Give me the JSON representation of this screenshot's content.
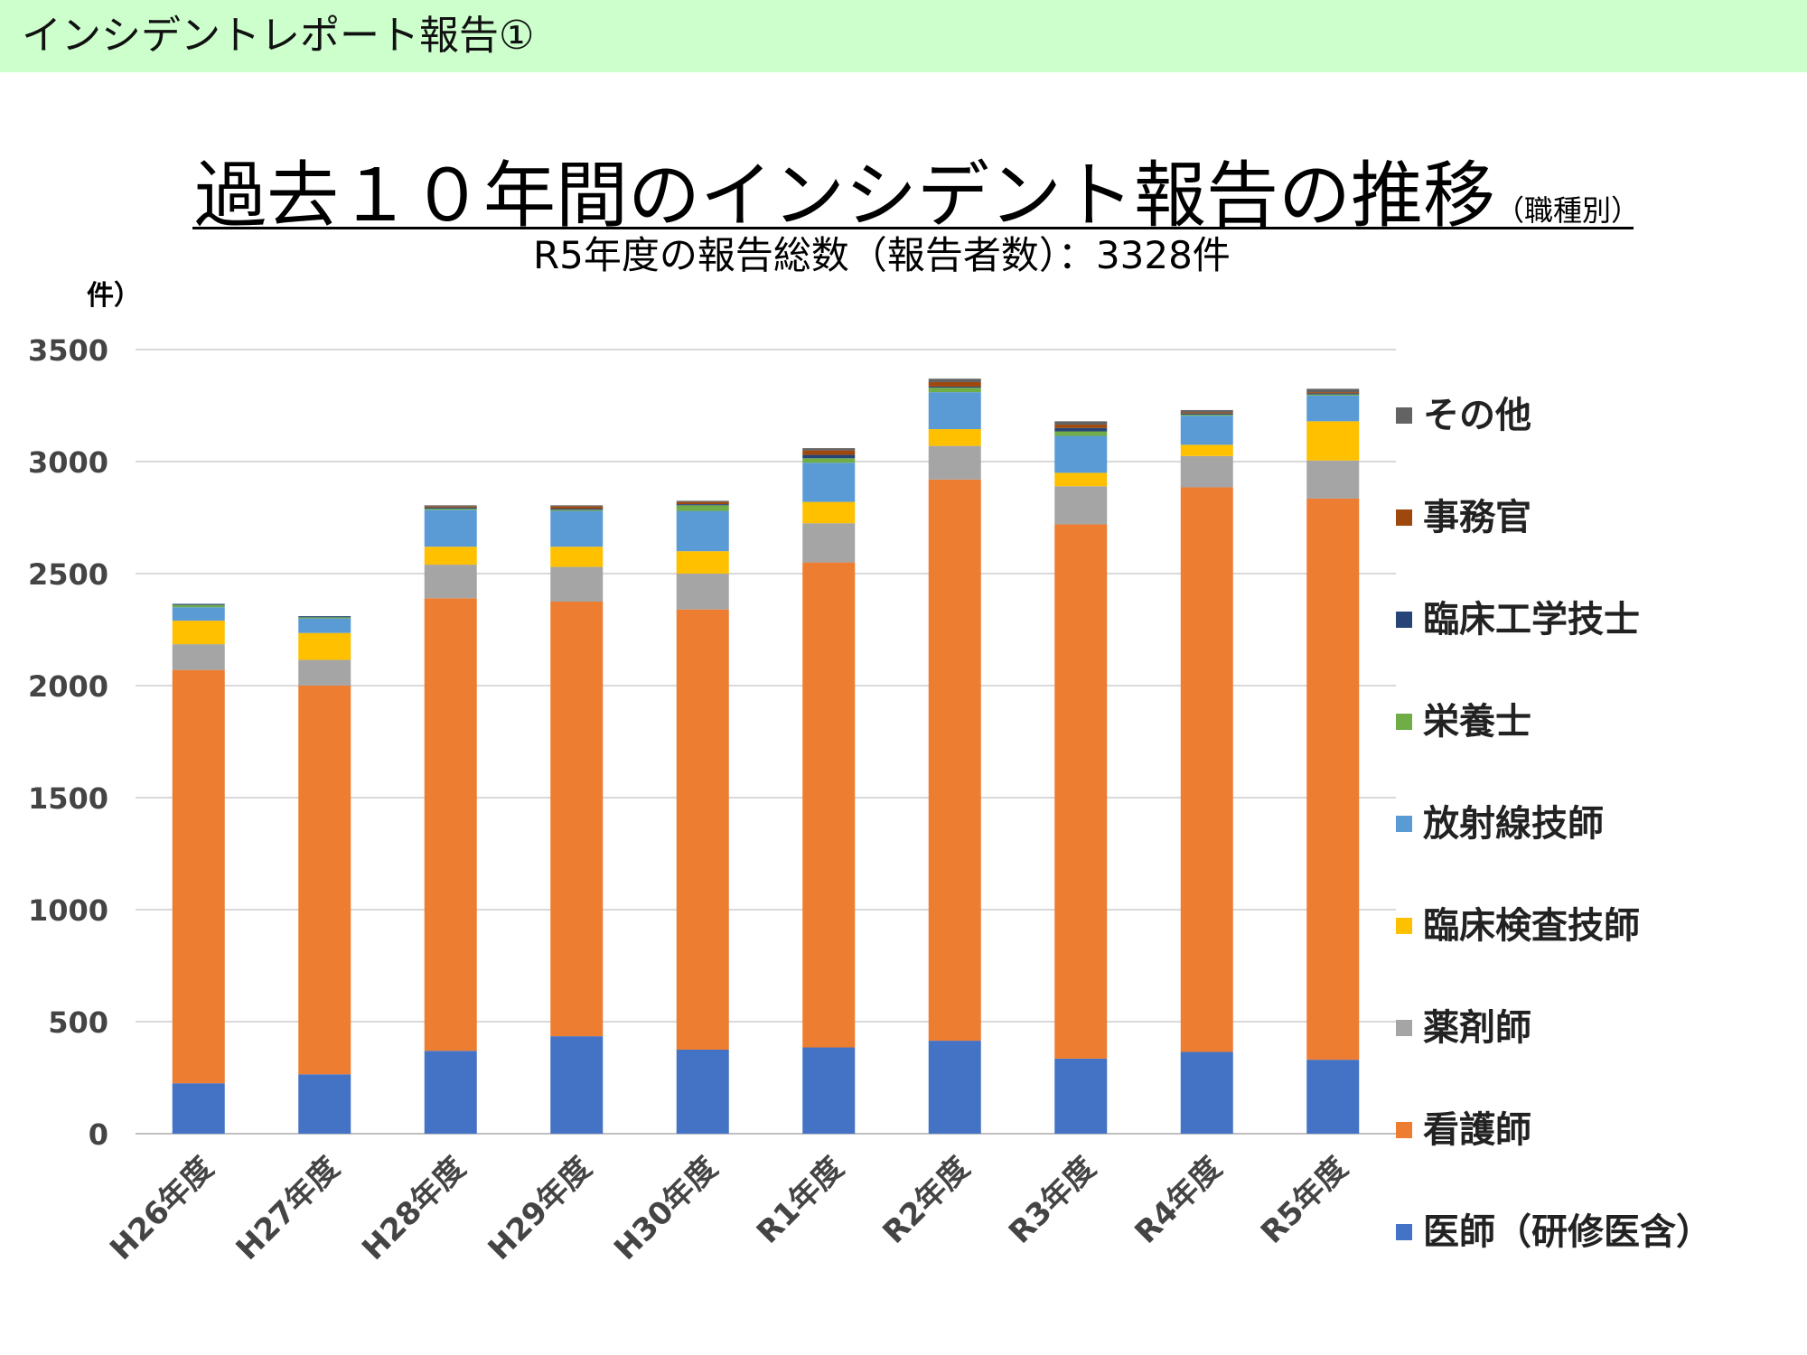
{
  "header": {
    "title": "インシデントレポート報告①"
  },
  "chart_data": {
    "type": "bar",
    "stacked": true,
    "title": "過去１０年間のインシデント報告の推移",
    "title_suffix": "（職種別）",
    "subtitle": "R5年度の報告総数（報告者数）：3328件",
    "ylabel": "件）",
    "ylim": [
      0,
      3500
    ],
    "yticks": [
      0,
      500,
      1000,
      1500,
      2000,
      2500,
      3000,
      3500
    ],
    "grid": true,
    "legend_position": "right",
    "categories": [
      "H26年度",
      "H27年度",
      "H28年度",
      "H29年度",
      "H30年度",
      "R1年度",
      "R2年度",
      "R3年度",
      "R4年度",
      "R5年度"
    ],
    "series": [
      {
        "name": "医師（研修医含）",
        "color": "#4472c4",
        "values": [
          225,
          265,
          370,
          435,
          375,
          385,
          415,
          335,
          365,
          330
        ]
      },
      {
        "name": "看護師",
        "color": "#ed7d31",
        "values": [
          1845,
          1735,
          2020,
          1940,
          1965,
          2165,
          2505,
          2385,
          2520,
          2505
        ]
      },
      {
        "name": "薬剤師",
        "color": "#a5a5a5",
        "values": [
          115,
          115,
          150,
          155,
          160,
          175,
          150,
          170,
          140,
          170
        ]
      },
      {
        "name": "臨床検査技師",
        "color": "#ffc000",
        "values": [
          105,
          120,
          80,
          90,
          100,
          95,
          75,
          60,
          50,
          175
        ]
      },
      {
        "name": "放射線技師",
        "color": "#5b9bd5",
        "values": [
          60,
          65,
          165,
          160,
          180,
          175,
          165,
          165,
          130,
          115
        ]
      },
      {
        "name": "栄養士",
        "color": "#70ad47",
        "values": [
          10,
          5,
          5,
          5,
          25,
          20,
          20,
          20,
          5,
          5
        ]
      },
      {
        "name": "臨床工学技士",
        "color": "#264478",
        "values": [
          5,
          5,
          5,
          5,
          5,
          15,
          5,
          15,
          5,
          5
        ]
      },
      {
        "name": "事務官",
        "color": "#9e480e",
        "values": [
          0,
          0,
          5,
          10,
          10,
          20,
          20,
          15,
          5,
          5
        ]
      },
      {
        "name": "その他",
        "color": "#636363",
        "values": [
          0,
          0,
          5,
          5,
          5,
          10,
          15,
          15,
          10,
          15
        ]
      }
    ]
  }
}
